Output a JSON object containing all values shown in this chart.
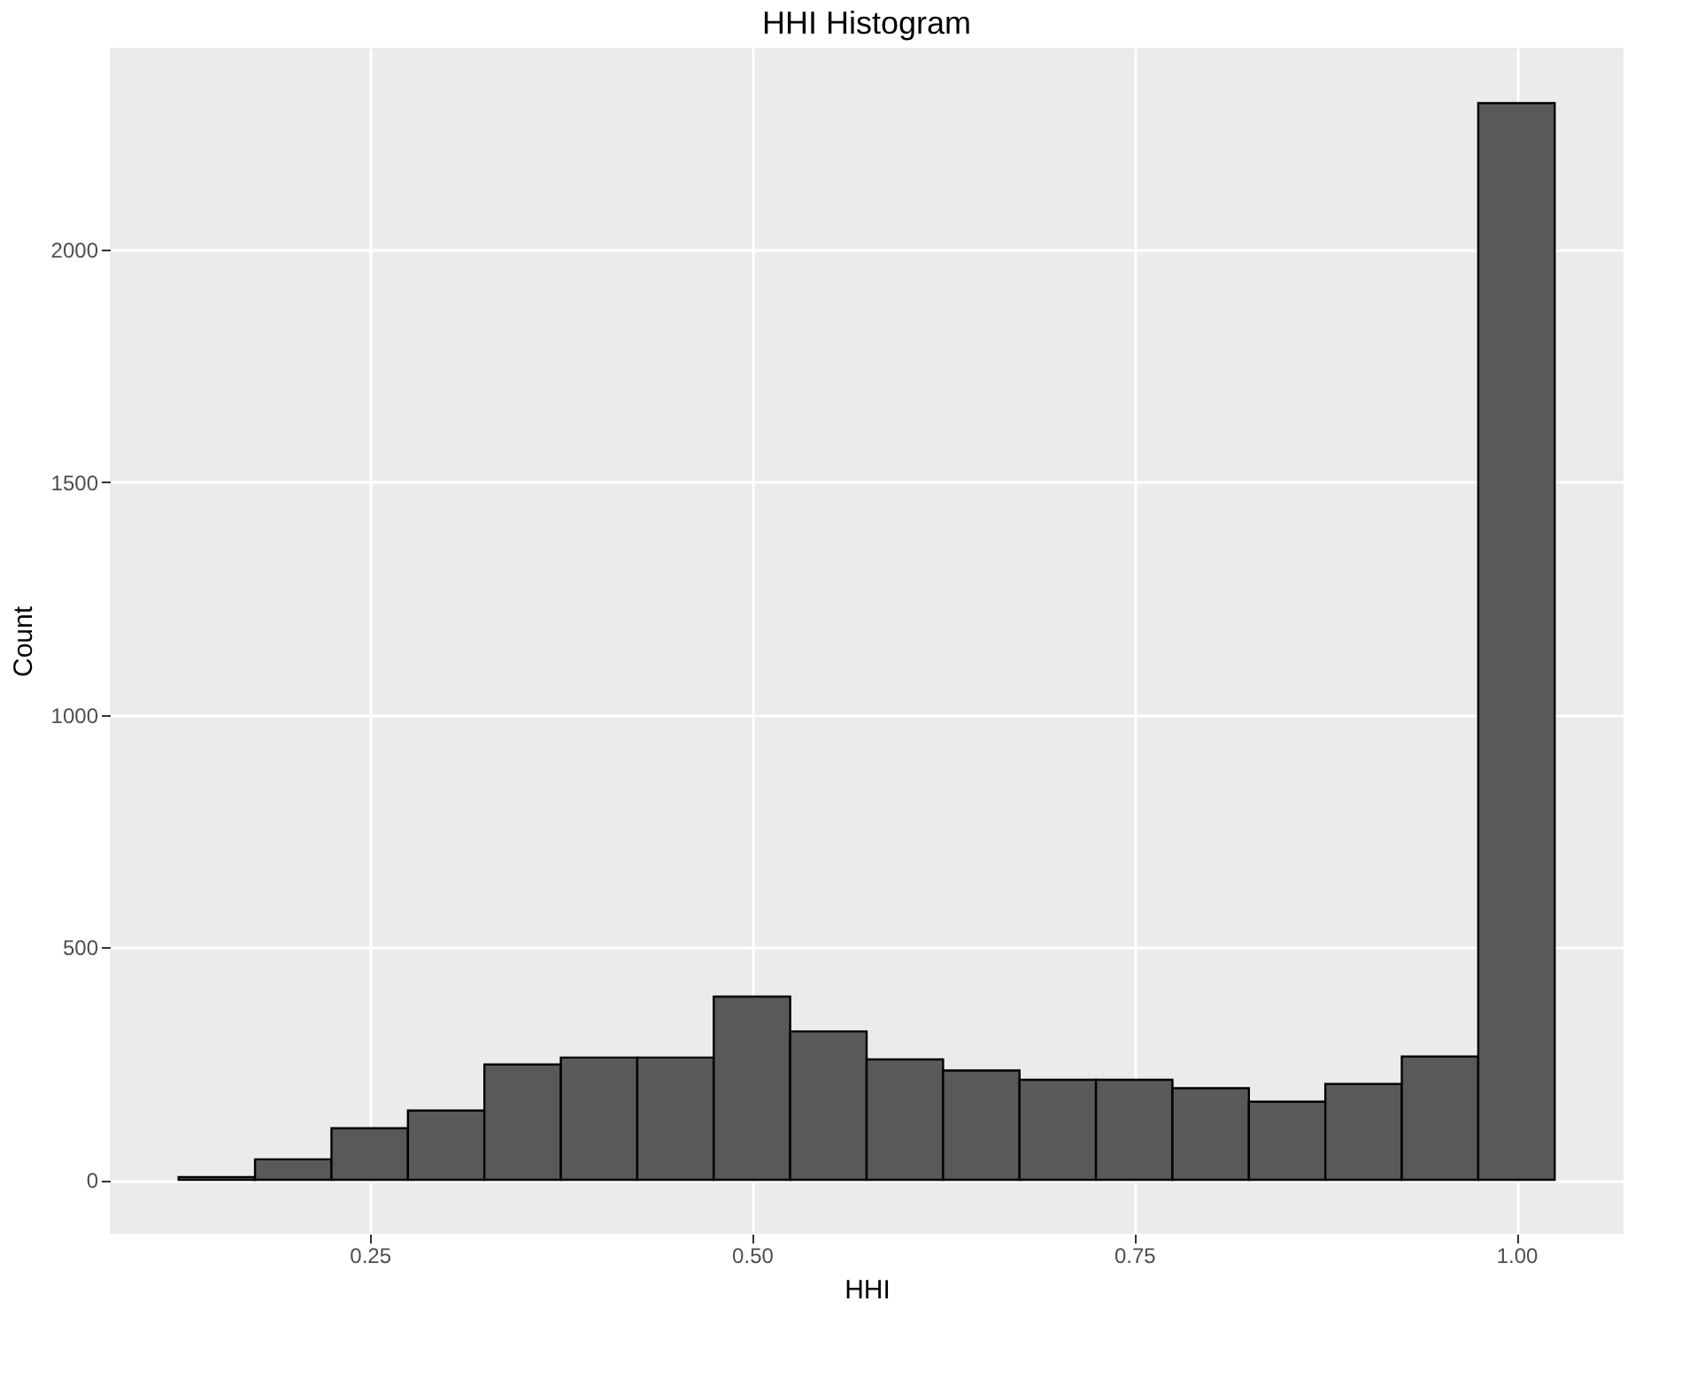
{
  "chart_data": {
    "type": "histogram",
    "title": "HHI Histogram",
    "xlabel": "HHI",
    "ylabel": "Count",
    "bins": [
      0.125,
      0.175,
      0.225,
      0.275,
      0.325,
      0.375,
      0.425,
      0.475,
      0.525,
      0.575,
      0.625,
      0.675,
      0.725,
      0.775,
      0.825,
      0.875,
      0.925,
      0.975,
      1.025
    ],
    "values": [
      6,
      44,
      111,
      149,
      248,
      263,
      263,
      394,
      319,
      259,
      235,
      215,
      215,
      197,
      168,
      206,
      265,
      2315
    ],
    "color": "#595959",
    "xlim": [
      0.08,
      1.07
    ],
    "xticks": [
      {
        "value": 0.25,
        "label": "0.25"
      },
      {
        "value": 0.5,
        "label": "0.50"
      },
      {
        "value": 0.75,
        "label": "0.75"
      },
      {
        "value": 1.0,
        "label": "1.00"
      }
    ],
    "ylim": [
      -116,
      2434
    ],
    "yticks": [
      0,
      500,
      1000,
      1500,
      2000
    ],
    "grid": true
  }
}
